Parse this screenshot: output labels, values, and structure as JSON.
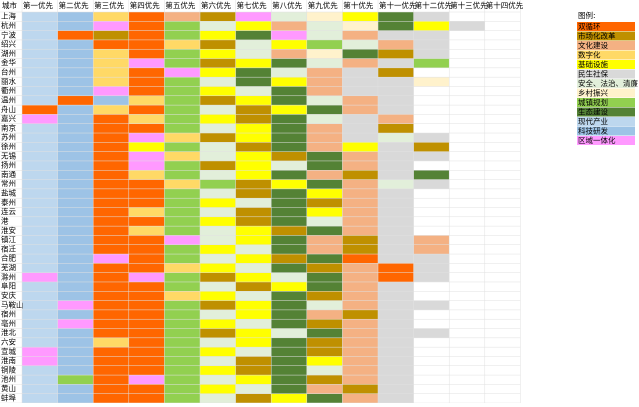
{
  "header": {
    "corner": "城市",
    "columns": [
      "第一优先",
      "第二优先",
      "第三优先",
      "第四优先",
      "第五优先",
      "第六优先",
      "第七优先",
      "第八优先",
      "第九优先",
      "第十优先",
      "第十一优先",
      "第十二优先",
      "第十三优先",
      "第十四优先"
    ]
  },
  "legend": {
    "title": "图例:",
    "items": [
      {
        "label": "双循环",
        "color": "#ff6600"
      },
      {
        "label": "市场化改革",
        "color": "#bf9000"
      },
      {
        "label": "文化建设",
        "color": "#f4b183"
      },
      {
        "label": "数字化",
        "color": "#ffd966"
      },
      {
        "label": "基础设施",
        "color": "#ffff00"
      },
      {
        "label": "民生社保",
        "color": "#d9d9d9"
      },
      {
        "label": "安全、法治、清廉",
        "color": "#e2efda"
      },
      {
        "label": "乡村振兴",
        "color": "#fff2cc"
      },
      {
        "label": "城镇规划",
        "color": "#92d050"
      },
      {
        "label": "生态建设",
        "color": "#548235"
      },
      {
        "label": "现代产业",
        "color": "#bdd7ee"
      },
      {
        "label": "科技研发",
        "color": "#9dc3e6"
      },
      {
        "label": "区域一体化",
        "color": "#ff99ff"
      }
    ]
  },
  "rows": [
    {
      "city": "上海",
      "cells": [
        "现代产业",
        "科技研发",
        "数字化",
        "双循环",
        "文化建设",
        "市场化改革",
        "区域一体化",
        "安全、法治、清廉",
        "乡村振兴",
        "基础设施",
        "生态建设",
        "民生社保",
        null,
        null
      ]
    },
    {
      "city": "杭州",
      "cells": [
        "现代产业",
        "科技研发",
        "区域一体化",
        "双循环",
        "城镇规划",
        "安全、法治、清廉",
        "基础设施",
        "文化建设",
        "安全、法治、清廉",
        "乡村振兴",
        "生态建设",
        "基础设施",
        "民生社保",
        null
      ]
    },
    {
      "city": "宁波",
      "cells": [
        "现代产业",
        "双循环",
        "市场化改革",
        "双循环",
        "城镇规划",
        "基础设施",
        "生态建设",
        "区域一体化",
        "安全、法治、清廉",
        "文化建设",
        "民生社保",
        "民生社保",
        null,
        null
      ]
    },
    {
      "city": "绍兴",
      "cells": [
        "现代产业",
        "科技研发",
        "双循环",
        "双循环",
        "数字化",
        "市场化改革",
        "安全、法治、清廉",
        "基础设施",
        "城镇规划",
        "安全、法治、清廉",
        "文化建设",
        "民生社保",
        null,
        null
      ]
    },
    {
      "city": "湖州",
      "cells": [
        "现代产业",
        "科技研发",
        "数字化",
        "双循环",
        "城镇规划",
        "基础设施",
        "安全、法治、清廉",
        "文化建设",
        "乡村振兴",
        "生态建设",
        "市场化改革",
        "民生社保",
        null,
        null
      ]
    },
    {
      "city": "金华",
      "cells": [
        "现代产业",
        "科技研发",
        "数字化",
        "区域一体化",
        "城镇规划",
        "市场化改革",
        "基础设施",
        "生态建设",
        "安全、法治、清廉",
        "文化建设",
        "民生社保",
        "城镇规划",
        null,
        null
      ]
    },
    {
      "city": "台州",
      "cells": [
        "现代产业",
        "科技研发",
        "数字化",
        "双循环",
        "区域一体化",
        "基础设施",
        "生态建设",
        "安全、法治、清廉",
        "文化建设",
        "民生社保",
        "市场化改革",
        null,
        null,
        null
      ]
    },
    {
      "city": "丽水",
      "cells": [
        "现代产业",
        "科技研发",
        "数字化",
        "双循环",
        "城镇规划",
        "安全、法治、清廉",
        "生态建设",
        "基础设施",
        "文化建设",
        "民生社保",
        "民生社保",
        "乡村振兴",
        null,
        null
      ]
    },
    {
      "city": "衢州",
      "cells": [
        "现代产业",
        "科技研发",
        "区域一体化",
        "双循环",
        "城镇规划",
        "基础设施",
        "安全、法治、清廉",
        "生态建设",
        "文化建设",
        "民生社保",
        "民生社保",
        null,
        null,
        null
      ]
    },
    {
      "city": "温州",
      "cells": [
        "现代产业",
        "双循环",
        "科技研发",
        "数字化",
        "城镇规划",
        "市场化改革",
        "基础设施",
        "生态建设",
        "安全、法治、清廉",
        "文化建设",
        "民生社保",
        null,
        null,
        null
      ]
    },
    {
      "city": "舟山",
      "cells": [
        "双循环",
        "科技研发",
        "数字化",
        "双循环",
        "城镇规划",
        "安全、法治、清廉",
        "市场化改革",
        "基础设施",
        "生态建设",
        "文化建设",
        "民生社保",
        null,
        null,
        null
      ]
    },
    {
      "city": "嘉兴",
      "cells": [
        "区域一体化",
        "科技研发",
        "双循环",
        "数字化",
        "城镇规划",
        "基础设施",
        "市场化改革",
        "生态建设",
        "安全、法治、清廉",
        "民生社保",
        "文化建设",
        null,
        null,
        null
      ]
    },
    {
      "city": "南京",
      "cells": [
        "现代产业",
        "科技研发",
        "双循环",
        "双循环",
        "城镇规划",
        "安全、法治、清廉",
        "基础设施",
        "生态建设",
        "文化建设",
        "民生社保",
        "市场化改革",
        null,
        null,
        null
      ]
    },
    {
      "city": "苏州",
      "cells": [
        "现代产业",
        "科技研发",
        "双循环",
        "区域一体化",
        "数字化",
        "市场化改革",
        "基础设施",
        "生态建设",
        "文化建设",
        "民生社保",
        "安全、法治、清廉",
        "民生社保",
        null,
        null
      ]
    },
    {
      "city": "徐州",
      "cells": [
        "现代产业",
        "科技研发",
        "双循环",
        "基础设施",
        "城镇规划",
        "安全、法治、清廉",
        "市场化改革",
        "生态建设",
        "文化建设",
        "基础设施",
        "民生社保",
        "市场化改革",
        null,
        null
      ]
    },
    {
      "city": "无锡",
      "cells": [
        "现代产业",
        "科技研发",
        "双循环",
        "区域一体化",
        "数字化",
        "安全、法治、清廉",
        "基础设施",
        "市场化改革",
        "生态建设",
        "文化建设",
        "民生社保",
        "民生社保",
        null,
        null
      ]
    },
    {
      "city": "扬州",
      "cells": [
        "现代产业",
        "科技研发",
        "双循环",
        "区域一体化",
        "城镇规划",
        "市场化改革",
        "基础设施",
        "安全、法治、清廉",
        "生态建设",
        "文化建设",
        "民生社保",
        null,
        null,
        null
      ]
    },
    {
      "city": "南通",
      "cells": [
        "现代产业",
        "科技研发",
        "双循环",
        "数字化",
        "城镇规划",
        "安全、法治、清廉",
        "基础设施",
        "生态建设",
        "文化建设",
        "市场化改革",
        "民生社保",
        "生态建设",
        null,
        null
      ]
    },
    {
      "city": "常州",
      "cells": [
        "现代产业",
        "科技研发",
        "双循环",
        "双循环",
        "数字化",
        "城镇规划",
        "市场化改革",
        "基础设施",
        "生态建设",
        "文化建设",
        "安全、法治、清廉",
        "民生社保",
        null,
        null
      ]
    },
    {
      "city": "盐城",
      "cells": [
        "现代产业",
        "科技研发",
        "双循环",
        "双循环",
        "城镇规划",
        "安全、法治、清廉",
        "市场化改革",
        "生态建设",
        "基础设施",
        "文化建设",
        "民生社保",
        null,
        null,
        null
      ]
    },
    {
      "city": "泰州",
      "cells": [
        "现代产业",
        "科技研发",
        "双循环",
        "双循环",
        "城镇规划",
        "基础设施",
        "安全、法治、清廉",
        "生态建设",
        "市场化改革",
        "文化建设",
        "民生社保",
        null,
        null,
        null
      ]
    },
    {
      "city": "连云",
      "cells": [
        "现代产业",
        "科技研发",
        "双循环",
        "数字化",
        "城镇规划",
        "安全、法治、清廉",
        "市场化改革",
        "生态建设",
        "基础设施",
        "文化建设",
        "民生社保",
        null,
        null,
        null
      ]
    },
    {
      "city": "港",
      "cells": [
        "现代产业",
        "科技研发",
        "双循环",
        "双循环",
        "城镇规划",
        "基础设施",
        "市场化改革",
        "生态建设",
        "安全、法治、清廉",
        "文化建设",
        "民生社保",
        null,
        null,
        null
      ]
    },
    {
      "city": "淮安",
      "cells": [
        "现代产业",
        "科技研发",
        "双循环",
        "数字化",
        "城镇规划",
        "安全、法治、清廉",
        "基础设施",
        "市场化改革",
        "生态建设",
        "文化建设",
        "民生社保",
        null,
        null,
        null
      ]
    },
    {
      "city": "镇江",
      "cells": [
        "现代产业",
        "科技研发",
        "双循环",
        "双循环",
        "区域一体化",
        "安全、法治、清廉",
        "基础设施",
        "生态建设",
        "文化建设",
        "市场化改革",
        "民生社保",
        "文化建设",
        null,
        null
      ]
    },
    {
      "city": "宿迁",
      "cells": [
        "现代产业",
        "科技研发",
        "双循环",
        "双循环",
        "城镇规划",
        "基础设施",
        "安全、法治、清廉",
        "生态建设",
        "文化建设",
        "市场化改革",
        "民生社保",
        "文化建设",
        null,
        null
      ]
    },
    {
      "city": "合肥",
      "cells": [
        "现代产业",
        "科技研发",
        "区域一体化",
        "双循环",
        "城镇规划",
        "安全、法治、清廉",
        "基础设施",
        "市场化改革",
        "生态建设",
        "双循环",
        "民生社保",
        "民生社保",
        null,
        null
      ]
    },
    {
      "city": "芜湖",
      "cells": [
        "现代产业",
        "科技研发",
        "双循环",
        "双循环",
        "数字化",
        "基础设施",
        "安全、法治、清廉",
        "生态建设",
        "市场化改革",
        "文化建设",
        "双循环",
        "民生社保",
        null,
        null
      ]
    },
    {
      "city": "滁州",
      "cells": [
        "区域一体化",
        "科技研发",
        "双循环",
        "区域一体化",
        "城镇规划",
        "市场化改革",
        "基础设施",
        "安全、法治、清廉",
        "生态建设",
        "文化建设",
        "双循环",
        "民生社保",
        null,
        null
      ]
    },
    {
      "city": "阜阳",
      "cells": [
        "现代产业",
        "科技研发",
        "双循环",
        "双循环",
        "城镇规划",
        "安全、法治、清廉",
        "市场化改革",
        "基础设施",
        "生态建设",
        "文化建设",
        "民生社保",
        null,
        null,
        null
      ]
    },
    {
      "city": "安庆",
      "cells": [
        "现代产业",
        "科技研发",
        "双循环",
        "双循环",
        "数字化",
        "基础设施",
        "安全、法治、清廉",
        "生态建设",
        "市场化改革",
        "文化建设",
        "民生社保",
        null,
        null,
        null
      ]
    },
    {
      "city": "马鞍山",
      "cells": [
        "现代产业",
        "区域一体化",
        "双循环",
        "双循环",
        "城镇规划",
        "市场化改革",
        "基础设施",
        "生态建设",
        "安全、法治、清廉",
        "文化建设",
        "民生社保",
        "民生社保",
        null,
        null
      ]
    },
    {
      "city": "宿州",
      "cells": [
        "现代产业",
        "科技研发",
        "双循环",
        "双循环",
        "城镇规划",
        "安全、法治、清廉",
        "基础设施",
        "生态建设",
        "文化建设",
        "市场化改革",
        "民生社保",
        null,
        null,
        null
      ]
    },
    {
      "city": "亳州",
      "cells": [
        "现代产业",
        "区域一体化",
        "双循环",
        "双循环",
        "城镇规划",
        "基础设施",
        "安全、法治、清廉",
        "生态建设",
        "市场化改革",
        "文化建设",
        "民生社保",
        null,
        null,
        null
      ]
    },
    {
      "city": "淮北",
      "cells": [
        "现代产业",
        "科技研发",
        "双循环",
        "双循环",
        "城镇规划",
        "市场化改革",
        "基础设施",
        "安全、法治、清廉",
        "生态建设",
        "文化建设",
        "民生社保",
        "民生社保",
        null,
        null
      ]
    },
    {
      "city": "六安",
      "cells": [
        "现代产业",
        "科技研发",
        "数字化",
        "双循环",
        "城镇规划",
        "安全、法治、清廉",
        "基础设施",
        "生态建设",
        "市场化改革",
        "文化建设",
        "民生社保",
        null,
        null,
        null
      ]
    },
    {
      "city": "宣城",
      "cells": [
        "区域一体化",
        "科技研发",
        "双循环",
        "双循环",
        "城镇规划",
        "基础设施",
        "安全、法治、清廉",
        "生态建设",
        "市场化改革",
        "文化建设",
        "民生社保",
        null,
        null,
        null
      ]
    },
    {
      "city": "淮南",
      "cells": [
        "区域一体化",
        "科技研发",
        "双循环",
        "双循环",
        "城镇规划",
        "安全、法治、清廉",
        "市场化改革",
        "生态建设",
        "基础设施",
        "文化建设",
        "民生社保",
        null,
        null,
        null
      ]
    },
    {
      "city": "铜陵",
      "cells": [
        "现代产业",
        "科技研发",
        "双循环",
        "双循环",
        "城镇规划",
        "基础设施",
        "市场化改革",
        "生态建设",
        "安全、法治、清廉",
        "文化建设",
        "民生社保",
        null,
        null,
        null
      ]
    },
    {
      "city": "池州",
      "cells": [
        "现代产业",
        "城镇规划",
        "双循环",
        "区域一体化",
        "城镇规划",
        "安全、法治、清廉",
        "基础设施",
        "生态建设",
        "市场化改革",
        "文化建设",
        "民生社保",
        null,
        null,
        null
      ]
    },
    {
      "city": "黄山",
      "cells": [
        "现代产业",
        "科技研发",
        "双循环",
        "双循环",
        "城镇规划",
        "基础设施",
        "安全、法治、清廉",
        "生态建设",
        "文化建设",
        "市场化改革",
        "民生社保",
        null,
        null,
        null
      ]
    },
    {
      "city": "蚌埠",
      "cells": [
        "现代产业",
        "科技研发",
        "双循环",
        "双循环",
        "城镇规划",
        "安全、法治、清廉",
        "市场化改革",
        "基础设施",
        "生态建设",
        "文化建设",
        "民生社保",
        null,
        null,
        null
      ]
    }
  ]
}
